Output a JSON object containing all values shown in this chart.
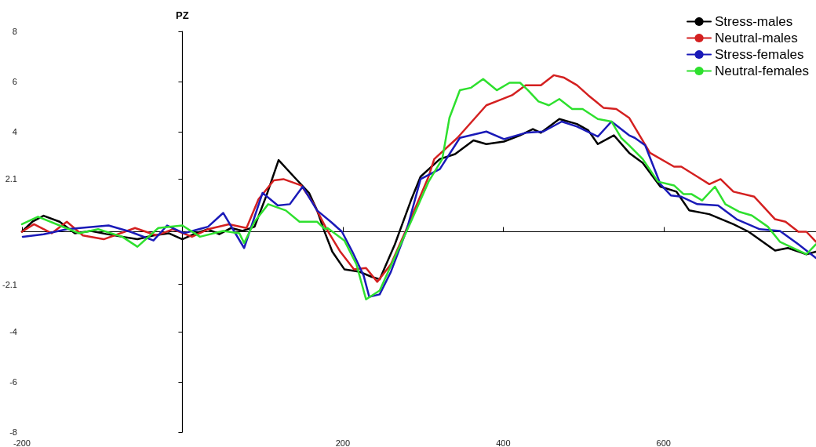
{
  "chart_data": {
    "type": "line",
    "ylabel": "PZ",
    "xlim": [
      -200,
      790
    ],
    "xticks": [
      -200,
      200,
      400,
      600
    ],
    "ylim": [
      -8,
      8
    ],
    "yticks": [
      -8,
      -6,
      -4,
      -2.1,
      2.1,
      4,
      6,
      8
    ],
    "legend": "top right",
    "marker": "none",
    "line_style": "solid",
    "grid": false,
    "series": [
      {
        "name": "Stress-males",
        "color": "#000000",
        "x": [
          -200,
          -187,
          -173,
          -153,
          -134,
          -114,
          -95,
          -75,
          -56,
          -36,
          -17,
          0,
          17,
          32,
          46,
          61,
          75,
          90,
          105,
          120,
          139,
          158,
          168,
          178,
          187,
          202,
          221,
          236,
          246,
          265,
          285,
          297,
          321,
          340,
          363,
          379,
          401,
          421,
          437,
          447,
          470,
          492,
          506,
          518,
          538,
          557,
          574,
          596,
          616,
          632,
          657,
          687,
          706,
          739,
          755,
          778,
          790
        ],
        "values": [
          0,
          0.4,
          0.64,
          0.4,
          -0.06,
          0.03,
          -0.09,
          -0.2,
          -0.3,
          -0.15,
          -0.06,
          -0.3,
          -0.06,
          0.1,
          -0.1,
          0.15,
          0.03,
          0.2,
          1.46,
          2.86,
          2.2,
          1.55,
          0.85,
          -0.06,
          -0.8,
          -1.5,
          -1.6,
          -1.8,
          -1.9,
          -0.5,
          1.25,
          2.2,
          2.9,
          3.1,
          3.65,
          3.5,
          3.6,
          3.85,
          4.1,
          3.95,
          4.5,
          4.3,
          4.05,
          3.5,
          3.85,
          3.15,
          2.75,
          1.8,
          1.6,
          0.85,
          0.7,
          0.3,
          0,
          -0.75,
          -0.65,
          -0.9,
          -0.8
        ]
      },
      {
        "name": "Neutral-males",
        "color": "#d42020",
        "x": [
          -200,
          -185,
          -163,
          -144,
          -124,
          -98,
          -59,
          -32,
          -12,
          12,
          32,
          58,
          80,
          95,
          114,
          126,
          148,
          163,
          180,
          197,
          214,
          229,
          243,
          260,
          278,
          299,
          307,
          314,
          343,
          379,
          395,
          411,
          428,
          447,
          463,
          476,
          492,
          506,
          525,
          541,
          557,
          583,
          613,
          622,
          642,
          657,
          671,
          687,
          713,
          739,
          752,
          768,
          778,
          790
        ],
        "values": [
          0,
          0.3,
          -0.06,
          0.4,
          -0.15,
          -0.3,
          0.15,
          -0.15,
          0.1,
          -0.2,
          0.1,
          0.3,
          0.15,
          1.3,
          2.05,
          2.1,
          1.85,
          1.15,
          0.1,
          -0.8,
          -1.5,
          -1.45,
          -2.0,
          -1.3,
          0,
          1.6,
          2.2,
          2.9,
          3.75,
          5.05,
          5.25,
          5.45,
          5.85,
          5.85,
          6.25,
          6.15,
          5.85,
          5.45,
          4.95,
          4.9,
          4.55,
          3.15,
          2.6,
          2.6,
          2.2,
          1.9,
          2.1,
          1.6,
          1.4,
          0.5,
          0.4,
          0,
          0,
          -0.4
        ]
      },
      {
        "name": "Stress-females",
        "color": "#1a1ab8",
        "x": [
          -199,
          -173,
          -144,
          -92,
          -65,
          -36,
          -19,
          2,
          32,
          51,
          77,
          100,
          119,
          134,
          150,
          168,
          185,
          199,
          212,
          226,
          233,
          246,
          260,
          280,
          297,
          321,
          346,
          379,
          401,
          428,
          450,
          473,
          492,
          518,
          535,
          557,
          564,
          577,
          596,
          609,
          622,
          642,
          668,
          691,
          720,
          745,
          768,
          790
        ],
        "values": [
          -0.2,
          -0.1,
          0.1,
          0.25,
          0,
          -0.35,
          0.25,
          -0.06,
          0.2,
          0.75,
          -0.65,
          1.55,
          1.05,
          1.1,
          1.8,
          0.85,
          0.4,
          0,
          -0.8,
          -1.75,
          -2.6,
          -2.5,
          -1.6,
          0.1,
          2.1,
          2.5,
          3.75,
          4.0,
          3.7,
          3.95,
          4.0,
          4.4,
          4.2,
          3.8,
          4.4,
          3.85,
          3.75,
          3.45,
          1.9,
          1.45,
          1.4,
          1.1,
          1.05,
          0.5,
          0.1,
          0.03,
          -0.5,
          -1.05
        ]
      },
      {
        "name": "Neutral-females",
        "color": "#2ee02e",
        "x": [
          -200,
          -180,
          -153,
          -129,
          -105,
          -75,
          -56,
          -30,
          0,
          22,
          51,
          71,
          77,
          90,
          107,
          129,
          146,
          168,
          178,
          181,
          202,
          217,
          229,
          246,
          265,
          285,
          307,
          324,
          333,
          346,
          360,
          375,
          392,
          408,
          421,
          431,
          444,
          457,
          470,
          486,
          499,
          518,
          535,
          547,
          557,
          574,
          593,
          613,
          625,
          635,
          648,
          664,
          677,
          694,
          710,
          730,
          745,
          778,
          790
        ],
        "values": [
          0.3,
          0.6,
          0.25,
          -0.06,
          0.1,
          -0.2,
          -0.6,
          0.15,
          0.25,
          -0.2,
          0.03,
          -0.06,
          -0.45,
          0.4,
          1.1,
          0.85,
          0.4,
          0.4,
          0.1,
          0.15,
          -0.35,
          -1.3,
          -2.7,
          -2.35,
          -1.0,
          0.4,
          2.0,
          2.9,
          4.55,
          5.65,
          5.75,
          6.1,
          5.65,
          5.95,
          5.95,
          5.65,
          5.2,
          5.05,
          5.3,
          4.9,
          4.9,
          4.5,
          4.4,
          3.75,
          3.45,
          2.9,
          2.0,
          1.85,
          1.5,
          1.5,
          1.25,
          1.8,
          1.1,
          0.8,
          0.65,
          0.2,
          -0.4,
          -0.9,
          -0.5
        ]
      }
    ]
  }
}
